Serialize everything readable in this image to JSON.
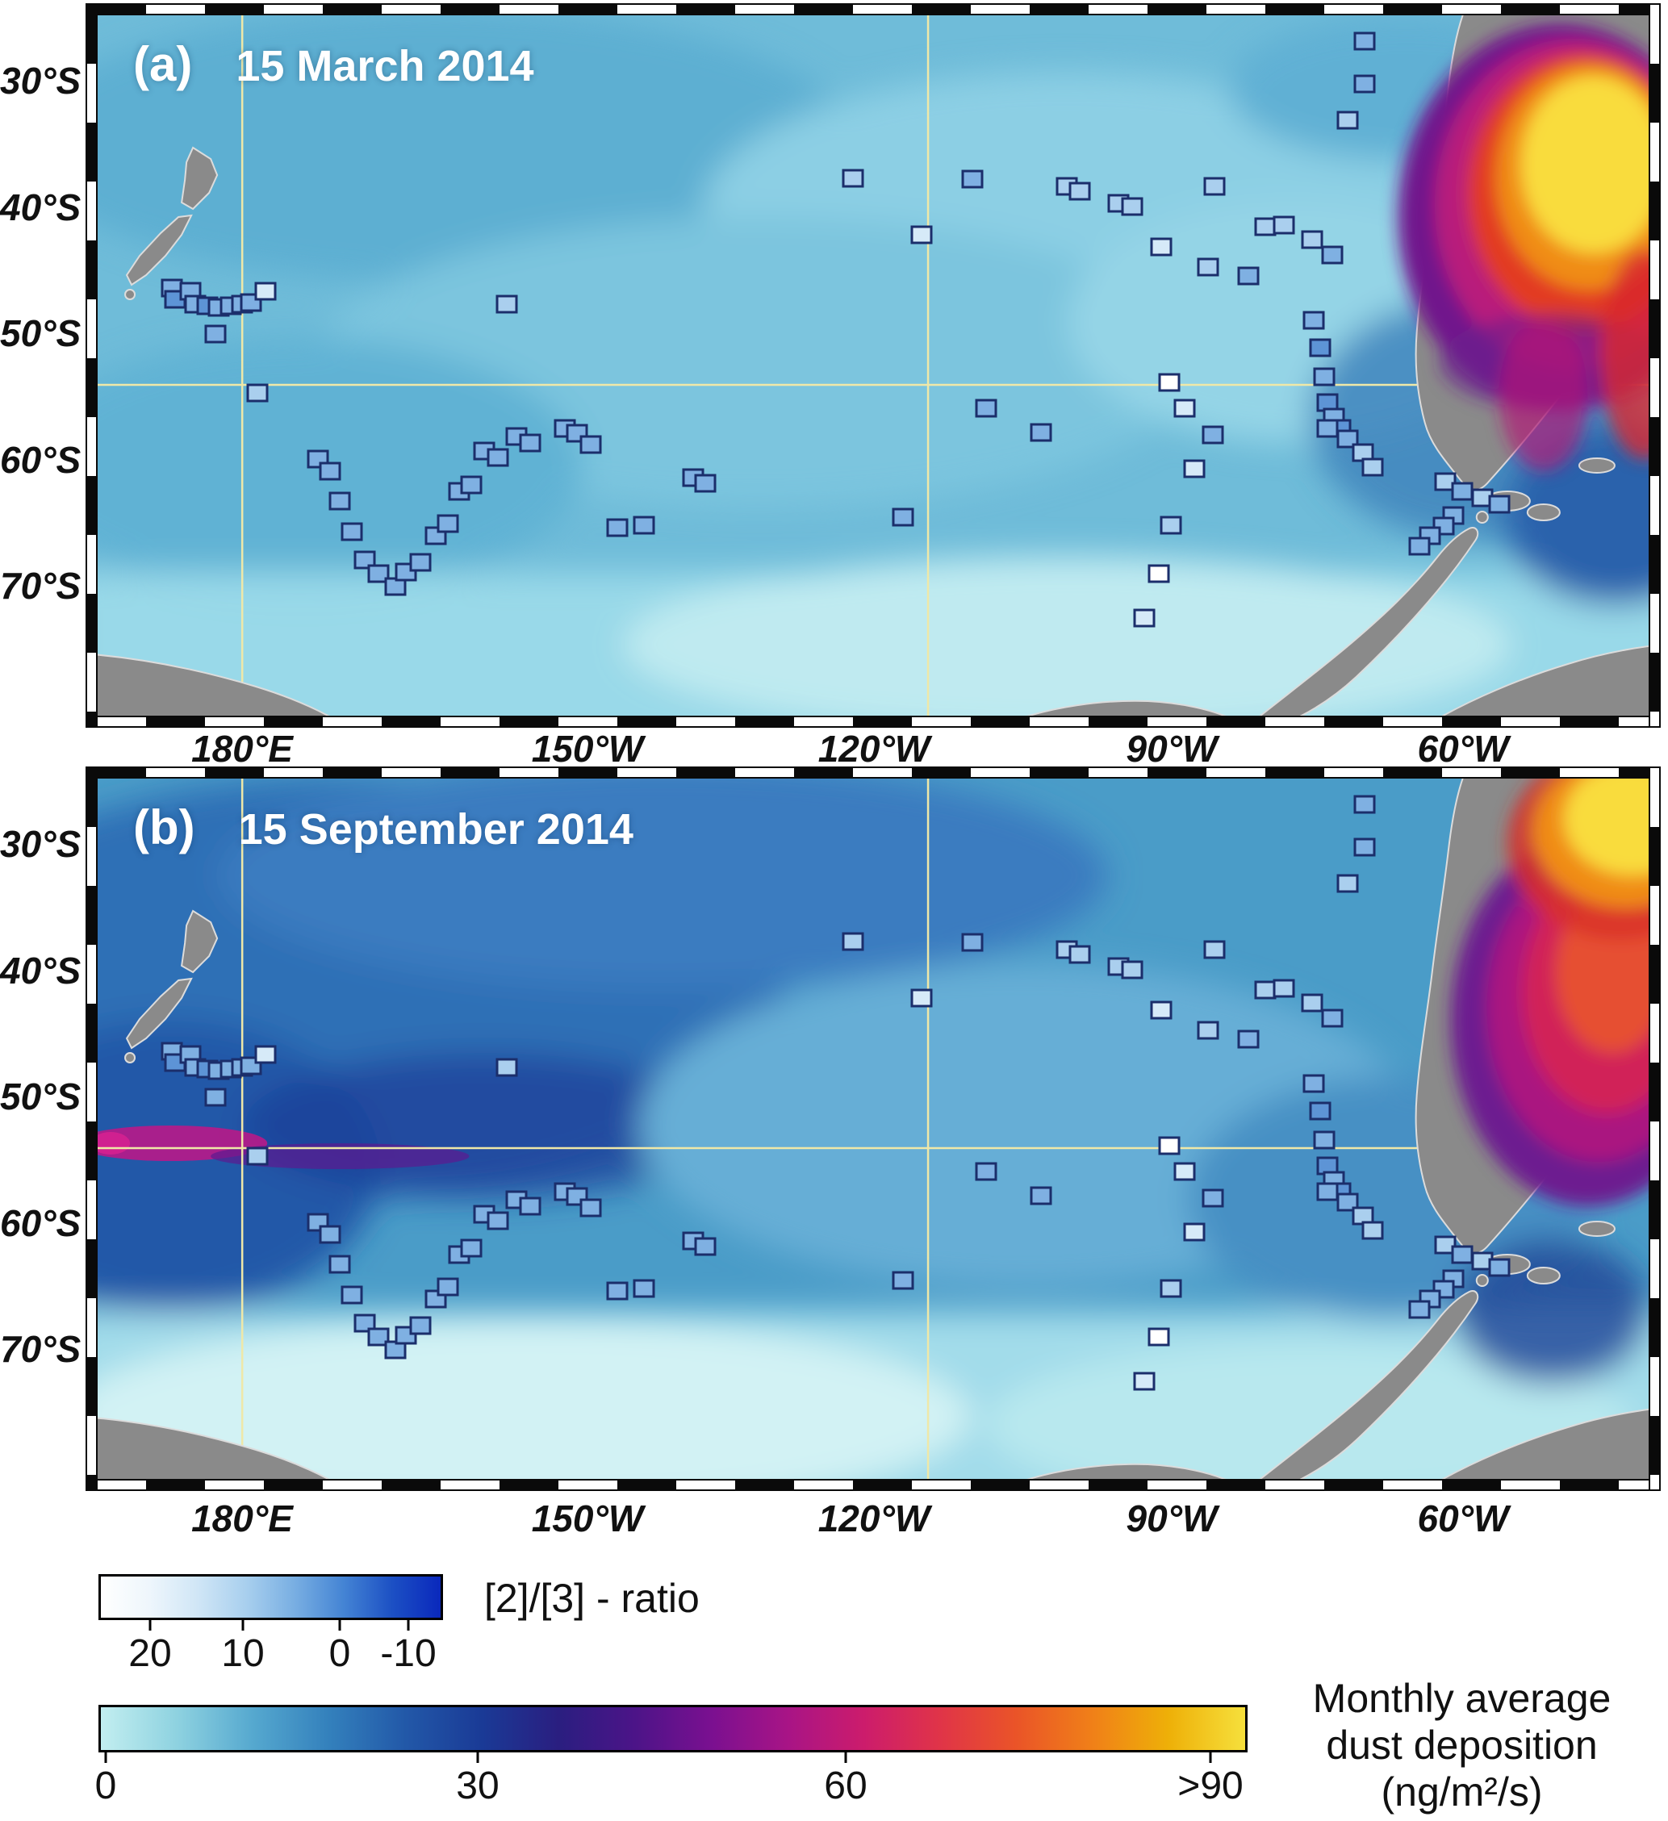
{
  "figure": {
    "panels": [
      {
        "label": "(a)",
        "date": "15 March 2014"
      },
      {
        "label": "(b)",
        "date": "15 September 2014"
      }
    ],
    "lat_ticks": [
      "30°S",
      "40°S",
      "50°S",
      "60°S",
      "70°S"
    ],
    "lon_ticks": [
      "180°E",
      "150°W",
      "120°W",
      "90°W",
      "60°W"
    ]
  },
  "legend": {
    "ratio": {
      "title": "[2]/[3] - ratio",
      "ticks": [
        "20",
        "10",
        "0",
        "-10"
      ]
    },
    "dust": {
      "title_lines": [
        "Monthly average",
        "dust deposition",
        "(ng/m²/s)"
      ],
      "ticks": [
        "0",
        "30",
        "60",
        ">90"
      ]
    }
  },
  "chart_data": {
    "type": "scatter",
    "description": "Two map panels of the South Pacific Ocean (approx. 165°E to 40°W, 25°S to 80°S). Background heatmap = monthly average dust deposition (ng/m2/s, 0 to >90); square station markers colored by [2]/[3] ratio (white = 20 to dark blue = -10). Panel a: 15 March 2014; panel b: 15 September 2014. Station positions identical in both panels.",
    "panels": [
      {
        "label": "(a)",
        "date": "15 March 2014"
      },
      {
        "label": "(b)",
        "date": "15 September 2014"
      }
    ],
    "lat_ticks": [
      "30°S",
      "40°S",
      "50°S",
      "60°S",
      "70°S"
    ],
    "lon_ticks": [
      "180°E",
      "150°W",
      "120°W",
      "90°W",
      "60°W"
    ],
    "ratio_scale": {
      "tick_values": [
        20,
        10,
        0,
        -10
      ],
      "left_end": 20,
      "right_end": -10
    },
    "dust_scale": {
      "tick_labels": [
        "0",
        "30",
        "60",
        ">90"
      ],
      "units": "ng/m²/s",
      "min": 0,
      "max": 90
    },
    "ratio_marker_palette": [
      "#ffffff",
      "#d6eaf8",
      "#aacfee",
      "#7fb0e2",
      "#5d94d6"
    ],
    "marker_border_color": "#1b2e6b",
    "grid_color": "#efe8a8",
    "land_color": "#8a8a8a",
    "stations": [
      [
        4.8,
        38.9,
        3
      ],
      [
        5.0,
        40.6,
        4
      ],
      [
        6.0,
        39.4,
        3
      ],
      [
        6.3,
        41.2,
        3
      ],
      [
        7.1,
        41.5,
        4
      ],
      [
        7.8,
        41.7,
        3
      ],
      [
        8.6,
        41.5,
        3
      ],
      [
        9.3,
        41.2,
        3
      ],
      [
        9.9,
        41.0,
        3
      ],
      [
        10.8,
        39.4,
        1
      ],
      [
        7.6,
        45.5,
        3
      ],
      [
        10.3,
        53.9,
        2
      ],
      [
        14.2,
        63.4,
        3
      ],
      [
        15.0,
        65.1,
        3
      ],
      [
        15.6,
        69.4,
        3
      ],
      [
        16.4,
        73.7,
        3
      ],
      [
        17.2,
        77.8,
        3
      ],
      [
        18.1,
        79.7,
        3
      ],
      [
        19.2,
        81.6,
        3
      ],
      [
        19.9,
        79.5,
        3
      ],
      [
        20.8,
        78.1,
        3
      ],
      [
        21.8,
        74.3,
        3
      ],
      [
        22.6,
        72.6,
        3
      ],
      [
        23.3,
        68.0,
        3
      ],
      [
        24.1,
        67.1,
        3
      ],
      [
        24.9,
        62.2,
        3
      ],
      [
        25.8,
        63.1,
        3
      ],
      [
        26.4,
        41.2,
        2
      ],
      [
        27.0,
        60.1,
        3
      ],
      [
        27.9,
        61.1,
        3
      ],
      [
        30.1,
        59.0,
        3
      ],
      [
        30.9,
        59.7,
        3
      ],
      [
        31.8,
        61.3,
        3
      ],
      [
        33.5,
        73.2,
        3
      ],
      [
        35.2,
        72.8,
        3
      ],
      [
        38.4,
        66.0,
        3
      ],
      [
        39.2,
        66.8,
        3
      ],
      [
        48.7,
        23.3,
        2
      ],
      [
        53.1,
        31.3,
        1
      ],
      [
        51.9,
        71.7,
        3
      ],
      [
        56.4,
        23.4,
        3
      ],
      [
        57.3,
        56.1,
        3
      ],
      [
        60.8,
        59.6,
        3
      ],
      [
        62.5,
        24.4,
        2
      ],
      [
        63.3,
        25.1,
        2
      ],
      [
        65.8,
        26.8,
        2
      ],
      [
        66.7,
        27.3,
        2
      ],
      [
        68.6,
        33.1,
        1
      ],
      [
        71.6,
        35.9,
        2
      ],
      [
        74.2,
        37.2,
        3
      ],
      [
        75.3,
        30.2,
        2
      ],
      [
        76.5,
        30.0,
        2
      ],
      [
        72.0,
        24.4,
        2
      ],
      [
        78.3,
        32.0,
        2
      ],
      [
        79.6,
        34.2,
        3
      ],
      [
        81.7,
        3.7,
        3
      ],
      [
        81.7,
        9.8,
        3
      ],
      [
        80.6,
        15.0,
        2
      ],
      [
        78.4,
        43.5,
        3
      ],
      [
        78.8,
        47.5,
        4
      ],
      [
        79.1,
        51.6,
        3
      ],
      [
        79.3,
        55.3,
        4
      ],
      [
        79.7,
        57.4,
        3
      ],
      [
        80.1,
        59.0,
        4
      ],
      [
        79.3,
        59.0,
        3
      ],
      [
        80.6,
        60.5,
        3
      ],
      [
        81.6,
        62.4,
        2
      ],
      [
        82.2,
        64.5,
        2
      ],
      [
        69.1,
        52.4,
        0
      ],
      [
        70.1,
        56.1,
        1
      ],
      [
        71.9,
        59.9,
        3
      ],
      [
        70.7,
        64.7,
        1
      ],
      [
        69.2,
        72.8,
        2
      ],
      [
        68.4,
        79.7,
        0
      ],
      [
        67.5,
        86.1,
        1
      ],
      [
        86.9,
        66.6,
        2
      ],
      [
        88.0,
        68.0,
        3
      ],
      [
        89.3,
        68.9,
        2
      ],
      [
        90.4,
        69.8,
        3
      ],
      [
        87.4,
        71.4,
        3
      ],
      [
        86.8,
        72.9,
        3
      ],
      [
        85.9,
        74.3,
        3
      ],
      [
        85.2,
        75.8,
        3
      ]
    ],
    "colorbars": {
      "ratio": {
        "stops": [
          "#ffffff",
          "#eef6fc",
          "#d0e6f6",
          "#a8cfee",
          "#78aee2",
          "#4484d4",
          "#1c50c4",
          "#0a28bc"
        ]
      },
      "dust": {
        "stops": [
          "#c2eef0",
          "#8ed2e0",
          "#55a8cf",
          "#3380bc",
          "#2258a8",
          "#1a3a96",
          "#2a1e80",
          "#4c1488",
          "#7a1090",
          "#a81486",
          "#cc1c6c",
          "#e03448",
          "#ea5428",
          "#f08018",
          "#eeb008",
          "#f6e03c"
        ]
      }
    }
  }
}
